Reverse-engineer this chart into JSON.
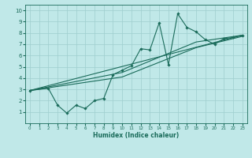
{
  "title": "",
  "xlabel": "Humidex (Indice chaleur)",
  "ylabel": "",
  "bg_color": "#c0e8e8",
  "line_color": "#1a6b5a",
  "grid_color": "#9ecece",
  "xlim": [
    -0.5,
    23.5
  ],
  "ylim": [
    0,
    10.5
  ],
  "xticks": [
    0,
    1,
    2,
    3,
    4,
    5,
    6,
    7,
    8,
    9,
    10,
    11,
    12,
    13,
    14,
    15,
    16,
    17,
    18,
    19,
    20,
    21,
    22,
    23
  ],
  "yticks": [
    1,
    2,
    3,
    4,
    5,
    6,
    7,
    8,
    9,
    10
  ],
  "lines": [
    {
      "x": [
        0,
        2,
        3,
        4,
        5,
        6,
        7,
        8,
        9,
        10,
        11,
        12,
        13,
        14,
        15,
        16,
        17,
        18,
        19,
        20,
        21,
        22,
        23
      ],
      "y": [
        2.9,
        3.1,
        1.6,
        0.9,
        1.6,
        1.3,
        2.0,
        2.2,
        4.3,
        4.7,
        5.1,
        6.6,
        6.5,
        8.9,
        5.2,
        9.7,
        8.5,
        8.1,
        7.4,
        7.0,
        7.5,
        7.6,
        7.8
      ],
      "marker": true
    },
    {
      "x": [
        0,
        23
      ],
      "y": [
        2.9,
        7.8
      ],
      "marker": false
    },
    {
      "x": [
        0,
        10,
        18,
        23
      ],
      "y": [
        2.9,
        4.5,
        7.2,
        7.8
      ],
      "marker": false
    },
    {
      "x": [
        0,
        10,
        18,
        23
      ],
      "y": [
        2.9,
        4.1,
        6.7,
        7.7
      ],
      "marker": false
    }
  ]
}
